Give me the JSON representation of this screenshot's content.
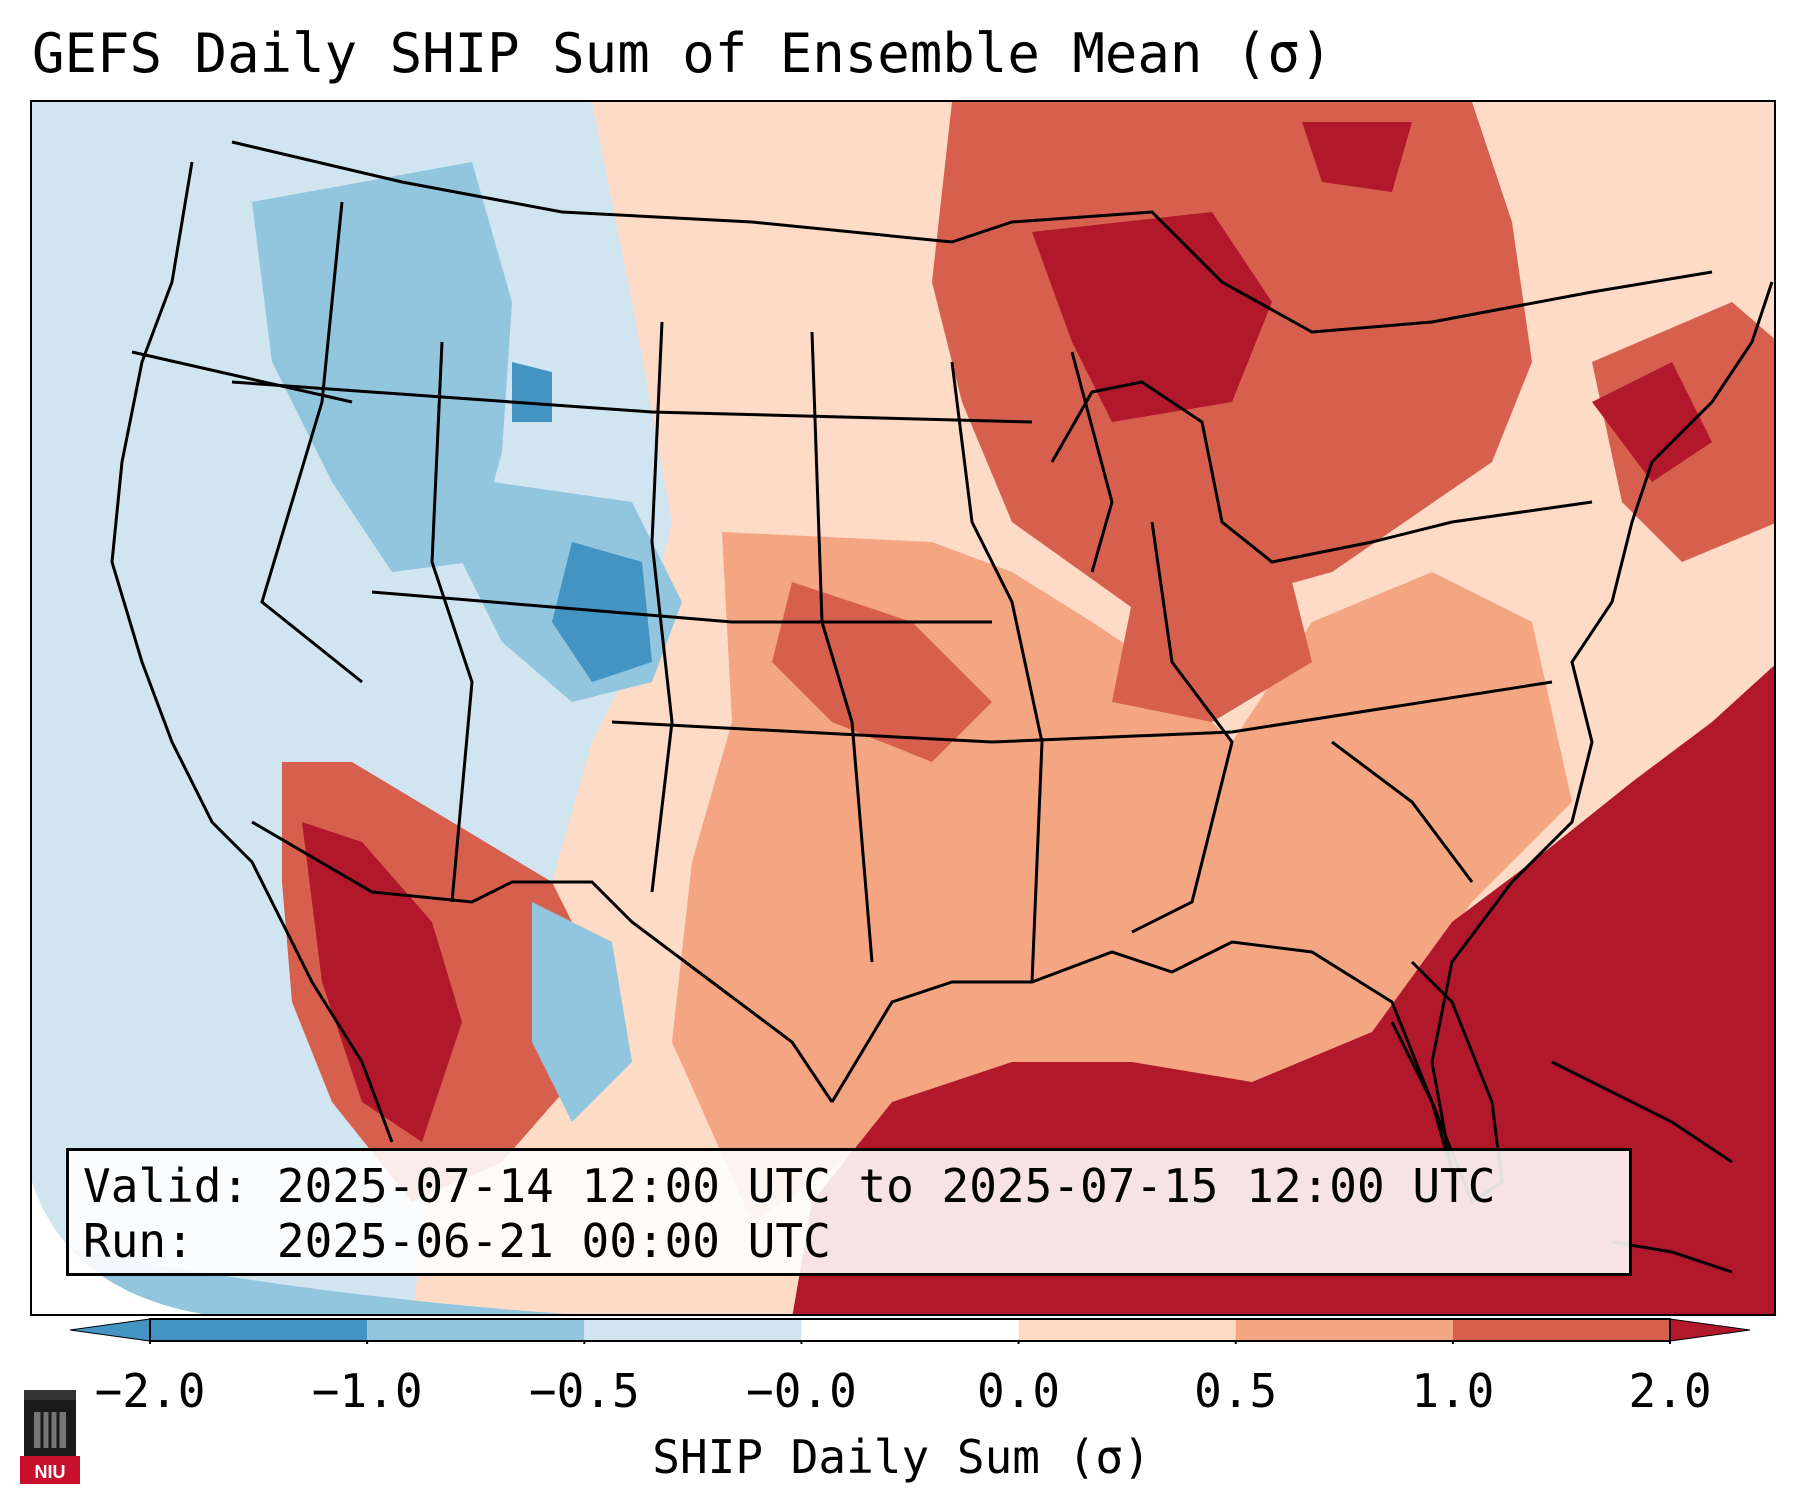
{
  "title": "GEFS Daily SHIP Sum of Ensemble Mean (σ)",
  "info": {
    "valid_label": "Valid:",
    "valid_value": "2025-07-14 12:00 UTC to 2025-07-15 12:00 UTC",
    "run_label": "Run:",
    "run_value": "2025-06-21 00:00 UTC"
  },
  "colorbar": {
    "label": "SHIP Daily Sum (σ)",
    "ticks": [
      "−2.0",
      "−1.0",
      "−0.5",
      "−0.0",
      "0.0",
      "0.5",
      "1.0",
      "2.0"
    ],
    "colors": [
      "#4393c3",
      "#92c5de",
      "#d1e5f0",
      "#ffffff",
      "#fddbc7",
      "#f4a582",
      "#d6604d",
      "#b2182b"
    ],
    "extend": "both"
  },
  "logo": {
    "text": "NIU"
  },
  "map": {
    "projection": "Lambert conformal",
    "region": "Contiguous United States"
  }
}
